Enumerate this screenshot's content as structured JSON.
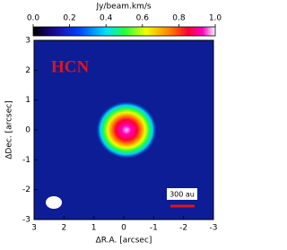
{
  "chart_data": {
    "type": "image",
    "colorbar_label": "Jy/beam.km/s",
    "clim": [
      0,
      1
    ],
    "cticks": [
      {
        "value": 0,
        "label": "0.0"
      },
      0.2,
      0.4,
      0.6,
      0.8,
      {
        "value": 1,
        "label": "1.0"
      }
    ],
    "xlabel": "ΔR.A. [arcsec]",
    "ylabel": "ΔDec. [arcsec]",
    "xlim": [
      3,
      -3
    ],
    "xticks": [
      3,
      2,
      1,
      0,
      -1,
      -2,
      -3
    ],
    "ylim": [
      -3,
      3
    ],
    "yticks": [
      -3,
      -2,
      -1,
      0,
      1,
      2,
      3
    ],
    "annotation": "HCN",
    "scalebar_label": "300 au"
  }
}
